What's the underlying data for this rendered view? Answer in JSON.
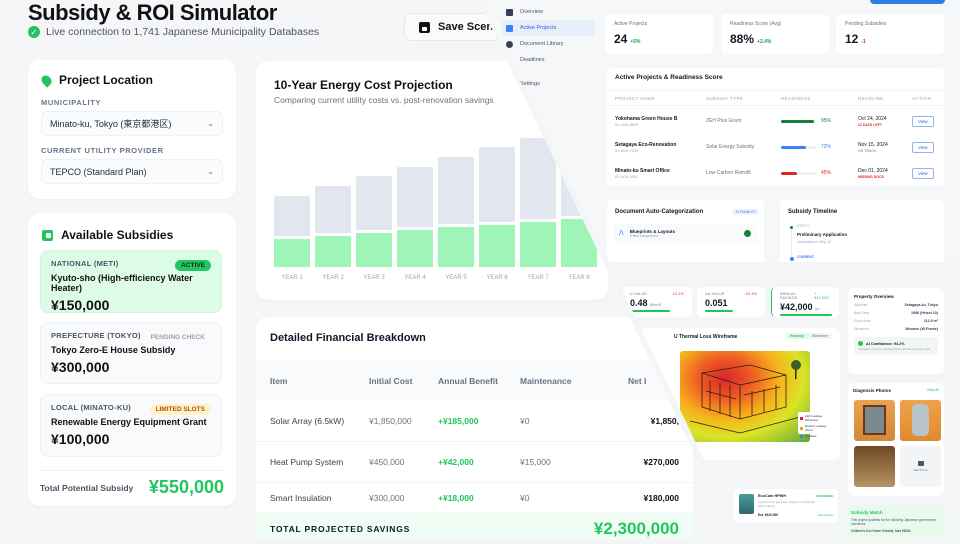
{
  "simulator": {
    "title": "Subsidy & ROI Simulator",
    "live_status": "Live connection to 1,741 Japanese Municipality Databases",
    "save_button": "Save Scen",
    "location": {
      "heading": "Project Location",
      "municipality_label": "MUNICIPALITY",
      "municipality_value": "Minato-ku, Tokyo (東京都港区)",
      "provider_label": "CURRENT UTILITY PROVIDER",
      "provider_value": "TEPCO (Standard Plan)"
    },
    "subsidies": {
      "heading": "Available Subsidies",
      "items": [
        {
          "level": "NATIONAL (METI)",
          "badge": "ACTIVE",
          "name": "Kyuto-sho (High-efficiency Water Heater)",
          "amount": "¥150,000"
        },
        {
          "level": "PREFECTURE (TOKYO)",
          "badge": "PENDING CHECK",
          "name": "Tokyo Zero-E House Subsidy",
          "amount": "¥300,000"
        },
        {
          "level": "LOCAL (MINATO-KU)",
          "badge": "LIMITED SLOTS",
          "name": "Renewable Energy Equipment Grant",
          "amount": "¥100,000"
        }
      ],
      "total_label": "Total Potential Subsidy",
      "total_value": "¥550,000"
    },
    "financial": {
      "heading": "Detailed Financial Breakdown",
      "columns": [
        "Item",
        "Initial Cost",
        "Annual Benefit",
        "Maintenance",
        "Net I"
      ],
      "rows": [
        {
          "item": "Solar Array (6.5kW)",
          "initial": "¥1,850,000",
          "benefit": "+¥185,000",
          "maintenance": "¥0",
          "net": "¥1,850,"
        },
        {
          "item": "Heat Pump System",
          "initial": "¥450,000",
          "benefit": "+¥42,000",
          "maintenance": "¥15,000",
          "net": "¥270,000"
        },
        {
          "item": "Smart Insulation",
          "initial": "¥300,000",
          "benefit": "+¥18,000",
          "maintenance": "¥0",
          "net": "¥180,000"
        }
      ],
      "total_label": "TOTAL PROJECTED SAVINGS",
      "total_value": "¥2,300,000"
    }
  },
  "chart_data": {
    "type": "bar",
    "title": "10-Year Energy Cost Projection",
    "subtitle": "Comparing current utility costs vs. post-renovation savings",
    "categories": [
      "YEAR 1",
      "YEAR 2",
      "YEAR 3",
      "YEAR 4",
      "YEAR 5",
      "YEAR 6",
      "YEAR 7",
      "YEAR 8"
    ],
    "series": [
      {
        "name": "Current utility cost",
        "color": "#e2e6ee",
        "values": [
          74,
          84,
          94,
          104,
          114,
          124,
          134,
          144
        ]
      },
      {
        "name": "Post-renovation",
        "color": "#9ef5b7",
        "values": [
          29,
          32,
          35,
          38,
          41,
          44,
          47,
          50
        ]
      }
    ],
    "xlabel": "",
    "ylabel": "",
    "ylim": [
      0,
      145
    ],
    "grid": false
  },
  "dashboard": {
    "nav": [
      "Overview",
      "Active Projects",
      "Document Library",
      "Deadlines",
      "Settings"
    ],
    "nav_active": 1,
    "stats": [
      {
        "label": "Active Projects",
        "value": "24",
        "delta": "+5%",
        "delta_color": "#16a34a"
      },
      {
        "label": "Readiness Score (Avg)",
        "value": "88%",
        "delta": "+2.4%",
        "delta_color": "#16a34a"
      },
      {
        "label": "Pending Subsidies",
        "value": "12",
        "delta": "-1",
        "delta_color": "#dc2626"
      }
    ],
    "projects": {
      "heading": "Active Projects & Readiness Score",
      "columns": [
        "PROJECT NAME",
        "SUBSIDY TYPE",
        "READINESS",
        "DEADLINE",
        "ACTION"
      ],
      "rows": [
        {
          "name": "Yokohama Green House B",
          "id": "ID: #GX-8829",
          "type": "ZEH Plus Grant",
          "readiness": "95%",
          "pct": 95,
          "color": "#15803d",
          "deadline": "Oct 24, 2024",
          "status": "12 DAYS LEFT",
          "status_color": "#dc2626",
          "action": "View"
        },
        {
          "name": "Setagaya Eco-Renovation",
          "id": "ID: #GX-7120",
          "type": "Solar Energy Subsidy",
          "readiness": "72%",
          "pct": 72,
          "color": "#3b82f6",
          "deadline": "Nov 15, 2024",
          "status": "ON TRACK",
          "status_color": "#9ca3af",
          "action": "View"
        },
        {
          "name": "Minato-ku Smart Office",
          "id": "ID: #GX-9901",
          "type": "Low-Carbon Retrofit",
          "readiness": "45%",
          "pct": 45,
          "color": "#dc2626",
          "deadline": "Dec 01, 2024",
          "status": "MISSING DOCS",
          "status_color": "#dc2626",
          "action": "View"
        }
      ]
    },
    "documents": {
      "heading": "Document Auto-Categorization",
      "badge": "AI ENABLED",
      "item": "Blueprints & Layouts",
      "item_sub": "8 files categorized"
    },
    "timeline": {
      "heading": "Subsidy Timeline",
      "step_label": "STEP 1",
      "step_title": "Preliminary Application",
      "step_sub": "Completed on Sep 12",
      "current": "CURRENT"
    }
  },
  "diagnosis": {
    "metrics": [
      {
        "label": "U-VALUE",
        "value": "0.48",
        "unit": "W/m²K",
        "delta": "-15.2%"
      },
      {
        "label": "UA-VALUE",
        "value": "0.051",
        "unit": "",
        "delta": "-18.4%"
      },
      {
        "label": "ANNUAL SAVINGS",
        "value": "¥42,000",
        "unit": "/yr",
        "delta": "+¥42,000"
      }
    ],
    "thermal": {
      "title": "U Thermal Loss Wireframe",
      "toggle_a": "Heatmap",
      "toggle_b": "Wireframe",
      "legend": [
        "High Leakage (Windows)",
        "Medium Leakage (Roof)",
        "Insulated"
      ]
    },
    "property": {
      "heading": "Property Overview",
      "rows": [
        [
          "Address",
          "Setagaya-ku, Tokyo"
        ],
        [
          "Built Year",
          "1998 (Heisei 10)"
        ],
        [
          "Floor Area",
          "112.5 m²"
        ],
        [
          "Structure",
          "Wooden (W-Frame)"
        ]
      ],
      "confidence": "AI Confidence: 94.2%",
      "confidence_sub": "Calculation using 14 uploaded photos and thermal sensor data."
    },
    "photos": {
      "heading": "Diagnosis Photos",
      "view_all": "View All",
      "items": [
        "Window A",
        "Water Heater",
        "Insulation",
        "Add Photo"
      ]
    },
    "match": {
      "heading": "Subsidy Match",
      "text": "This project qualifies for the following Japanese government incentives:",
      "item": "Children's Eco-Home Subsidy: Max ¥600k"
    },
    "product": {
      "name": "EcoCute HPWH",
      "badge": "SUBSIDIZED",
      "desc": "Upgrade from gas boiler. Eligible for ¥150,000 METI subsidy.",
      "est": "Est. ¥420,000",
      "link": "View Details"
    }
  }
}
